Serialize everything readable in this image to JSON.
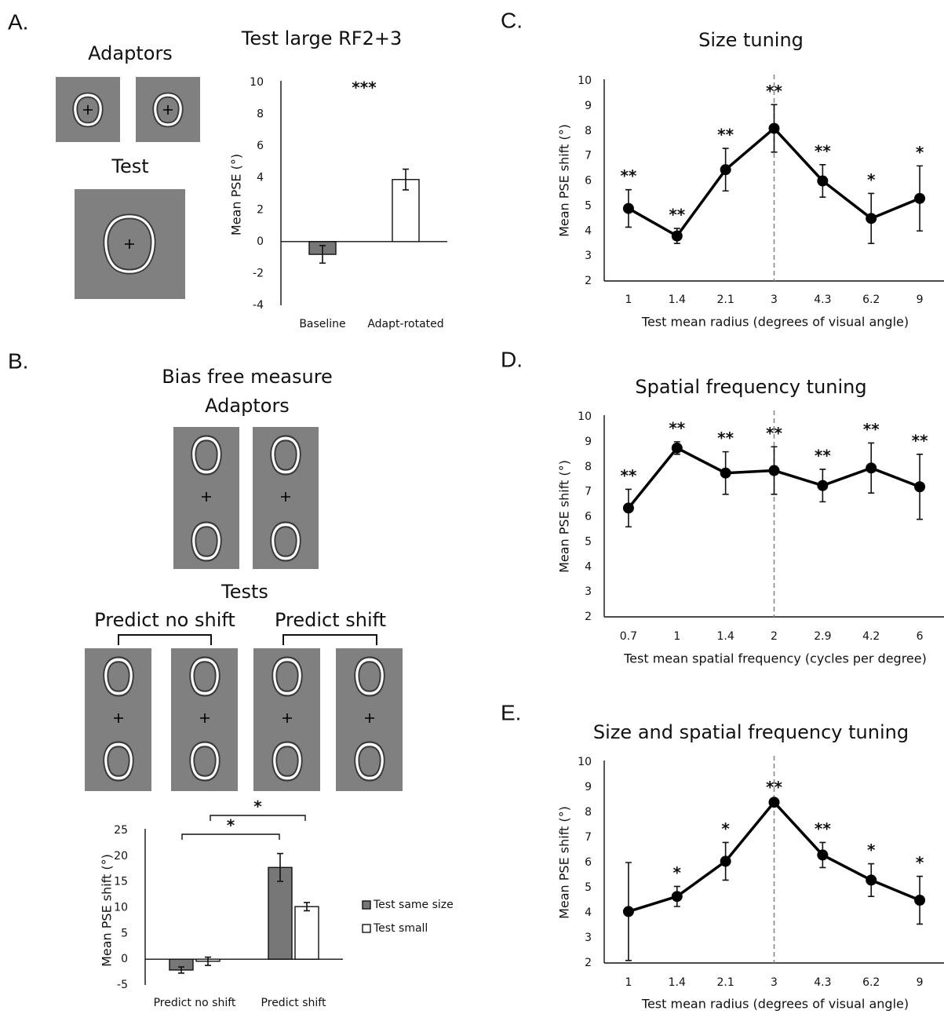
{
  "figure": {
    "panels": [
      "A.",
      "B.",
      "C.",
      "D.",
      "E."
    ],
    "stimuli": {
      "adaptors_a": "Adaptors",
      "test_a": "Test",
      "bias_title": "Bias free measure",
      "adaptors_b": "Adaptors",
      "tests": "Tests",
      "predict_no_shift": "Predict no shift",
      "predict_shift": "Predict shift"
    }
  },
  "chart_data": [
    {
      "type": "bar",
      "title": "Test large RF2+3",
      "y_label": "Mean PSE (°)",
      "annotation": "***",
      "categories": [
        "Baseline",
        "Adapt-rotated"
      ],
      "values": [
        -0.8,
        3.9
      ],
      "errors": [
        0.55,
        0.65
      ],
      "colors": [
        "#777777",
        "#ffffff"
      ],
      "ylim": [
        -4,
        10
      ],
      "yticks": [
        -4,
        -2,
        0,
        2,
        4,
        6,
        8,
        10
      ]
    },
    {
      "type": "grouped_bar",
      "y_label": "Mean PSE shift (°)",
      "significance": [
        "*",
        "*"
      ],
      "categories": [
        "Predict no shift",
        "Predict shift"
      ],
      "series": [
        {
          "name": "Test same size",
          "color": "#777777",
          "values": [
            -2.1,
            17.8
          ],
          "errors": [
            0.6,
            2.7
          ]
        },
        {
          "name": "Test small",
          "color": "#ffffff",
          "values": [
            -0.4,
            10.2
          ],
          "errors": [
            0.8,
            0.8
          ]
        }
      ],
      "ylim": [
        -5,
        25
      ],
      "yticks": [
        -5,
        0,
        5,
        10,
        15,
        20,
        25
      ],
      "legend": "right"
    },
    {
      "type": "line",
      "title": "Size tuning",
      "x_label": "Test mean radius (degrees of visual angle)",
      "y_label": "Mean PSE shift (°)",
      "categories": [
        "1",
        "1.4",
        "2.1",
        "3",
        "4.3",
        "6.2",
        "9"
      ],
      "values": [
        4.9,
        3.8,
        6.45,
        8.1,
        6.0,
        4.5,
        5.3
      ],
      "errors": [
        0.75,
        0.3,
        0.85,
        0.95,
        0.65,
        1.0,
        1.3
      ],
      "annotations": [
        "**",
        "**",
        "**",
        "**",
        "**",
        "*",
        "*"
      ],
      "reference_category": "3",
      "color": "#000000",
      "ylim": [
        2,
        10
      ],
      "yticks": [
        2,
        3,
        4,
        5,
        6,
        7,
        8,
        9,
        10
      ]
    },
    {
      "type": "line",
      "title": "Spatial frequency tuning",
      "x_label": "Test mean spatial frequency (cycles per degree)",
      "y_label": "Mean PSE shift (°)",
      "categories": [
        "0.7",
        "1",
        "1.4",
        "2",
        "2.9",
        "4.2",
        "6"
      ],
      "values": [
        6.35,
        8.75,
        7.75,
        7.85,
        7.25,
        7.95,
        7.2
      ],
      "errors": [
        0.75,
        0.25,
        0.85,
        0.95,
        0.65,
        1.0,
        1.3
      ],
      "annotations": [
        "**",
        "**",
        "**",
        "**",
        "**",
        "**",
        "**"
      ],
      "reference_category": "2",
      "color": "#000000",
      "ylim": [
        2,
        10
      ],
      "yticks": [
        2,
        3,
        4,
        5,
        6,
        7,
        8,
        9,
        10
      ]
    },
    {
      "type": "line",
      "title": "Size and spatial frequency tuning",
      "x_label": "Test mean radius (degrees of visual angle)",
      "y_label": "Mean PSE shift (°)",
      "categories": [
        "1",
        "1.4",
        "2.1",
        "3",
        "4.3",
        "6.2",
        "9"
      ],
      "values": [
        4.05,
        4.65,
        6.05,
        8.4,
        6.3,
        5.3,
        4.5
      ],
      "errors": [
        1.95,
        0.4,
        0.75,
        0.05,
        0.5,
        0.65,
        0.95
      ],
      "annotations": [
        null,
        "*",
        "*",
        "**",
        "**",
        "*",
        "*"
      ],
      "reference_category": "3",
      "color": "#000000",
      "ylim": [
        2,
        10
      ],
      "yticks": [
        2,
        3,
        4,
        5,
        6,
        7,
        8,
        9,
        10
      ]
    }
  ]
}
